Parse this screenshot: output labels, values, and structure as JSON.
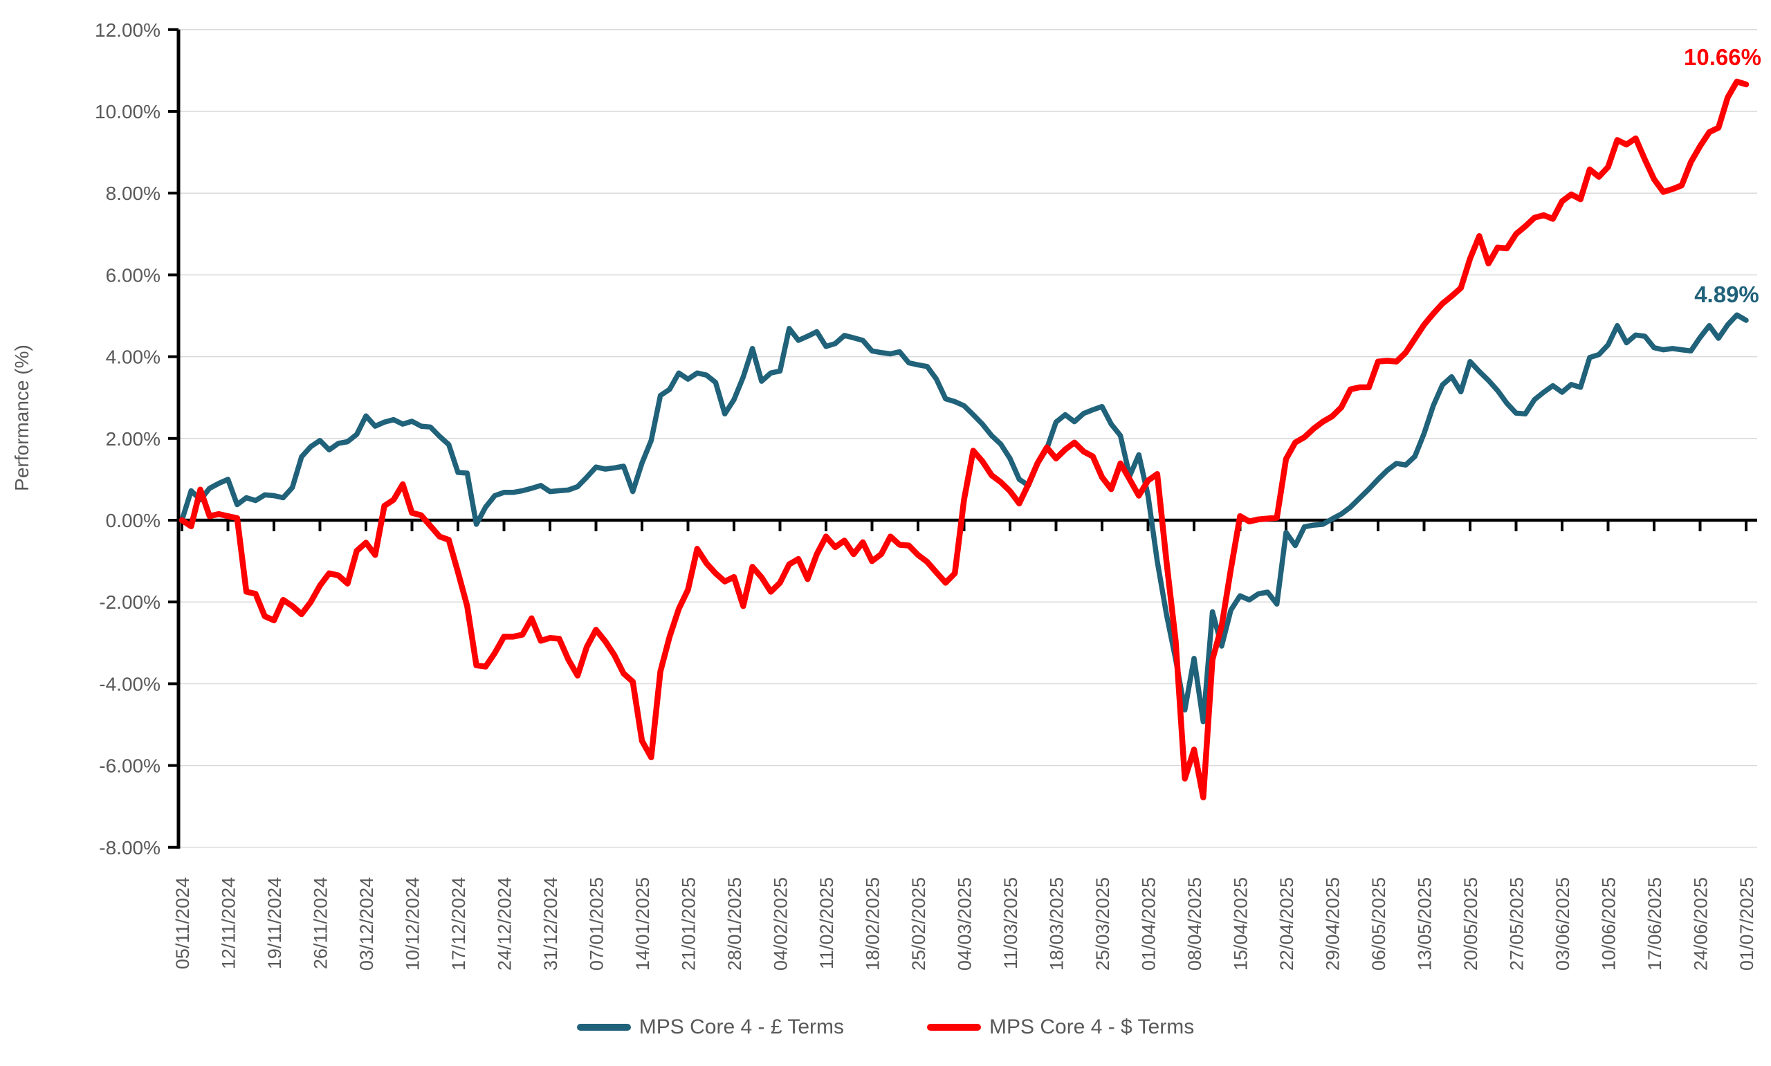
{
  "chart": {
    "y_axis_title": "Performance (%)",
    "background": "#FFFFFF",
    "colors": {
      "gbp_series": "#20627A",
      "usd_series": "#FF0000",
      "gridline": "#D9D9D9",
      "axis": "#000000",
      "tick_label": "#595959",
      "legend_text": "#595959"
    },
    "legend": {
      "gbp_label": "MPS Core 4 - £ Terms",
      "usd_label": "MPS Core 4 - $ Terms"
    }
  },
  "chart_data": {
    "type": "line",
    "title": "",
    "xlabel": "",
    "ylabel": "Performance (%)",
    "ylim": [
      -8,
      12
    ],
    "ytick_step": 2,
    "ytick_format": "0.00%",
    "grid": "horizontal",
    "legend_position": "bottom-center",
    "x_tick_every": 5,
    "x": [
      "05/11/2024",
      "06/11/2024",
      "07/11/2024",
      "08/11/2024",
      "11/11/2024",
      "12/11/2024",
      "13/11/2024",
      "14/11/2024",
      "15/11/2024",
      "18/11/2024",
      "19/11/2024",
      "20/11/2024",
      "21/11/2024",
      "22/11/2024",
      "25/11/2024",
      "26/11/2024",
      "27/11/2024",
      "28/11/2024",
      "29/11/2024",
      "02/12/2024",
      "03/12/2024",
      "04/12/2024",
      "05/12/2024",
      "06/12/2024",
      "09/12/2024",
      "10/12/2024",
      "11/12/2024",
      "12/12/2024",
      "13/12/2024",
      "16/12/2024",
      "17/12/2024",
      "18/12/2024",
      "19/12/2024",
      "20/12/2024",
      "23/12/2024",
      "24/12/2024",
      "25/12/2024",
      "26/12/2024",
      "27/12/2024",
      "30/12/2024",
      "31/12/2024",
      "01/01/2025",
      "02/01/2025",
      "03/01/2025",
      "06/01/2025",
      "07/01/2025",
      "08/01/2025",
      "09/01/2025",
      "10/01/2025",
      "13/01/2025",
      "14/01/2025",
      "15/01/2025",
      "16/01/2025",
      "17/01/2025",
      "20/01/2025",
      "21/01/2025",
      "22/01/2025",
      "23/01/2025",
      "24/01/2025",
      "27/01/2025",
      "28/01/2025",
      "29/01/2025",
      "30/01/2025",
      "31/01/2025",
      "03/02/2025",
      "04/02/2025",
      "05/02/2025",
      "06/02/2025",
      "07/02/2025",
      "10/02/2025",
      "11/02/2025",
      "12/02/2025",
      "13/02/2025",
      "14/02/2025",
      "17/02/2025",
      "18/02/2025",
      "19/02/2025",
      "20/02/2025",
      "21/02/2025",
      "24/02/2025",
      "25/02/2025",
      "26/02/2025",
      "27/02/2025",
      "28/02/2025",
      "03/03/2025",
      "04/03/2025",
      "05/03/2025",
      "06/03/2025",
      "07/03/2025",
      "10/03/2025",
      "11/03/2025",
      "12/03/2025",
      "13/03/2025",
      "14/03/2025",
      "17/03/2025",
      "18/03/2025",
      "19/03/2025",
      "20/03/2025",
      "21/03/2025",
      "24/03/2025",
      "25/03/2025",
      "26/03/2025",
      "27/03/2025",
      "28/03/2025",
      "31/03/2025",
      "01/04/2025",
      "02/04/2025",
      "03/04/2025",
      "04/04/2025",
      "07/04/2025",
      "08/04/2025",
      "09/04/2025",
      "10/04/2025",
      "11/04/2025",
      "14/04/2025",
      "15/04/2025",
      "16/04/2025",
      "17/04/2025",
      "18/04/2025",
      "21/04/2025",
      "22/04/2025",
      "23/04/2025",
      "24/04/2025",
      "25/04/2025",
      "28/04/2025",
      "29/04/2025",
      "30/04/2025",
      "01/05/2025",
      "02/05/2025",
      "05/05/2025",
      "06/05/2025",
      "07/05/2025",
      "08/05/2025",
      "09/05/2025",
      "12/05/2025",
      "13/05/2025",
      "14/05/2025",
      "15/05/2025",
      "16/05/2025",
      "19/05/2025",
      "20/05/2025",
      "21/05/2025",
      "22/05/2025",
      "23/05/2025",
      "26/05/2025",
      "27/05/2025",
      "28/05/2025",
      "29/05/2025",
      "30/05/2025",
      "02/06/2025",
      "03/06/2025",
      "04/06/2025",
      "05/06/2025",
      "06/06/2025",
      "09/06/2025",
      "10/06/2025",
      "11/06/2025",
      "12/06/2025",
      "13/06/2025",
      "16/06/2025",
      "17/06/2025",
      "18/06/2025",
      "19/06/2025",
      "20/06/2025",
      "23/06/2025",
      "24/06/2025",
      "25/06/2025",
      "26/06/2025",
      "27/06/2025",
      "30/06/2025",
      "01/07/2025"
    ],
    "series": [
      {
        "name": "MPS Core 4 - £ Terms",
        "color": "#20627A",
        "end_label": "4.89%",
        "values": [
          0.0,
          0.72,
          0.5,
          0.78,
          0.9,
          1.0,
          0.38,
          0.55,
          0.48,
          0.62,
          0.6,
          0.55,
          0.8,
          1.55,
          1.8,
          1.95,
          1.72,
          1.88,
          1.92,
          2.1,
          2.55,
          2.3,
          2.4,
          2.46,
          2.35,
          2.42,
          2.3,
          2.28,
          2.05,
          1.85,
          1.17,
          1.15,
          -0.1,
          0.32,
          0.6,
          0.68,
          0.68,
          0.72,
          0.78,
          0.85,
          0.7,
          0.72,
          0.74,
          0.82,
          1.05,
          1.3,
          1.25,
          1.28,
          1.32,
          0.7,
          1.4,
          1.95,
          3.05,
          3.2,
          3.6,
          3.45,
          3.6,
          3.55,
          3.37,
          2.6,
          2.95,
          3.5,
          4.2,
          3.4,
          3.6,
          3.65,
          4.69,
          4.4,
          4.5,
          4.61,
          4.25,
          4.32,
          4.52,
          4.46,
          4.4,
          4.14,
          4.1,
          4.07,
          4.12,
          3.85,
          3.8,
          3.76,
          3.45,
          2.97,
          2.9,
          2.8,
          2.58,
          2.35,
          2.07,
          1.86,
          1.51,
          1.0,
          0.85,
          1.39,
          1.75,
          2.4,
          2.58,
          2.41,
          2.61,
          2.7,
          2.78,
          2.35,
          2.07,
          1.08,
          1.6,
          0.6,
          -1.0,
          -2.3,
          -3.4,
          -4.64,
          -3.38,
          -4.93,
          -2.24,
          -3.08,
          -2.2,
          -1.85,
          -1.95,
          -1.8,
          -1.76,
          -2.05,
          -0.3,
          -0.62,
          -0.16,
          -0.12,
          -0.1,
          0.03,
          0.15,
          0.32,
          0.54,
          0.76,
          1.0,
          1.22,
          1.39,
          1.35,
          1.56,
          2.12,
          2.8,
          3.31,
          3.51,
          3.14,
          3.88,
          3.64,
          3.42,
          3.17,
          2.86,
          2.62,
          2.6,
          2.95,
          3.13,
          3.29,
          3.13,
          3.32,
          3.25,
          3.98,
          4.05,
          4.29,
          4.76,
          4.34,
          4.53,
          4.5,
          4.22,
          4.17,
          4.2,
          4.17,
          4.14,
          4.47,
          4.76,
          4.45,
          4.78,
          5.02,
          4.89
        ]
      },
      {
        "name": "MPS Core 4 - $ Terms",
        "color": "#FF0000",
        "end_label": "10.66%",
        "values": [
          0.0,
          -0.15,
          0.75,
          0.1,
          0.15,
          0.1,
          0.05,
          -1.75,
          -1.8,
          -2.35,
          -2.45,
          -1.95,
          -2.1,
          -2.3,
          -2.0,
          -1.6,
          -1.3,
          -1.35,
          -1.55,
          -0.75,
          -0.55,
          -0.85,
          0.35,
          0.5,
          0.88,
          0.18,
          0.12,
          -0.14,
          -0.4,
          -0.48,
          -1.27,
          -2.1,
          -3.55,
          -3.58,
          -3.25,
          -2.85,
          -2.85,
          -2.8,
          -2.4,
          -2.95,
          -2.88,
          -2.9,
          -3.41,
          -3.8,
          -3.1,
          -2.68,
          -2.96,
          -3.3,
          -3.75,
          -3.95,
          -5.4,
          -5.8,
          -3.7,
          -2.85,
          -2.17,
          -1.7,
          -0.7,
          -1.05,
          -1.3,
          -1.5,
          -1.39,
          -2.1,
          -1.14,
          -1.4,
          -1.75,
          -1.53,
          -1.08,
          -0.95,
          -1.44,
          -0.83,
          -0.4,
          -0.66,
          -0.5,
          -0.83,
          -0.54,
          -1.0,
          -0.83,
          -0.4,
          -0.6,
          -0.62,
          -0.85,
          -1.02,
          -1.28,
          -1.53,
          -1.3,
          0.5,
          1.7,
          1.44,
          1.1,
          0.93,
          0.71,
          0.41,
          0.88,
          1.4,
          1.78,
          1.51,
          1.73,
          1.9,
          1.68,
          1.56,
          1.05,
          0.76,
          1.39,
          1.0,
          0.6,
          0.97,
          1.13,
          -1.0,
          -2.95,
          -6.32,
          -5.61,
          -6.78,
          -3.41,
          -2.59,
          -1.2,
          0.1,
          -0.03,
          0.02,
          0.04,
          0.06,
          1.5,
          1.9,
          2.03,
          2.24,
          2.41,
          2.54,
          2.76,
          3.2,
          3.25,
          3.25,
          3.88,
          3.9,
          3.88,
          4.1,
          4.44,
          4.78,
          5.05,
          5.3,
          5.48,
          5.68,
          6.4,
          6.95,
          6.28,
          6.67,
          6.65,
          7.0,
          7.19,
          7.4,
          7.46,
          7.37,
          7.8,
          7.97,
          7.85,
          8.58,
          8.4,
          8.64,
          9.3,
          9.19,
          9.34,
          8.82,
          8.34,
          8.03,
          8.1,
          8.19,
          8.76,
          9.15,
          9.49,
          9.6,
          10.34,
          10.73,
          10.66
        ]
      }
    ]
  }
}
